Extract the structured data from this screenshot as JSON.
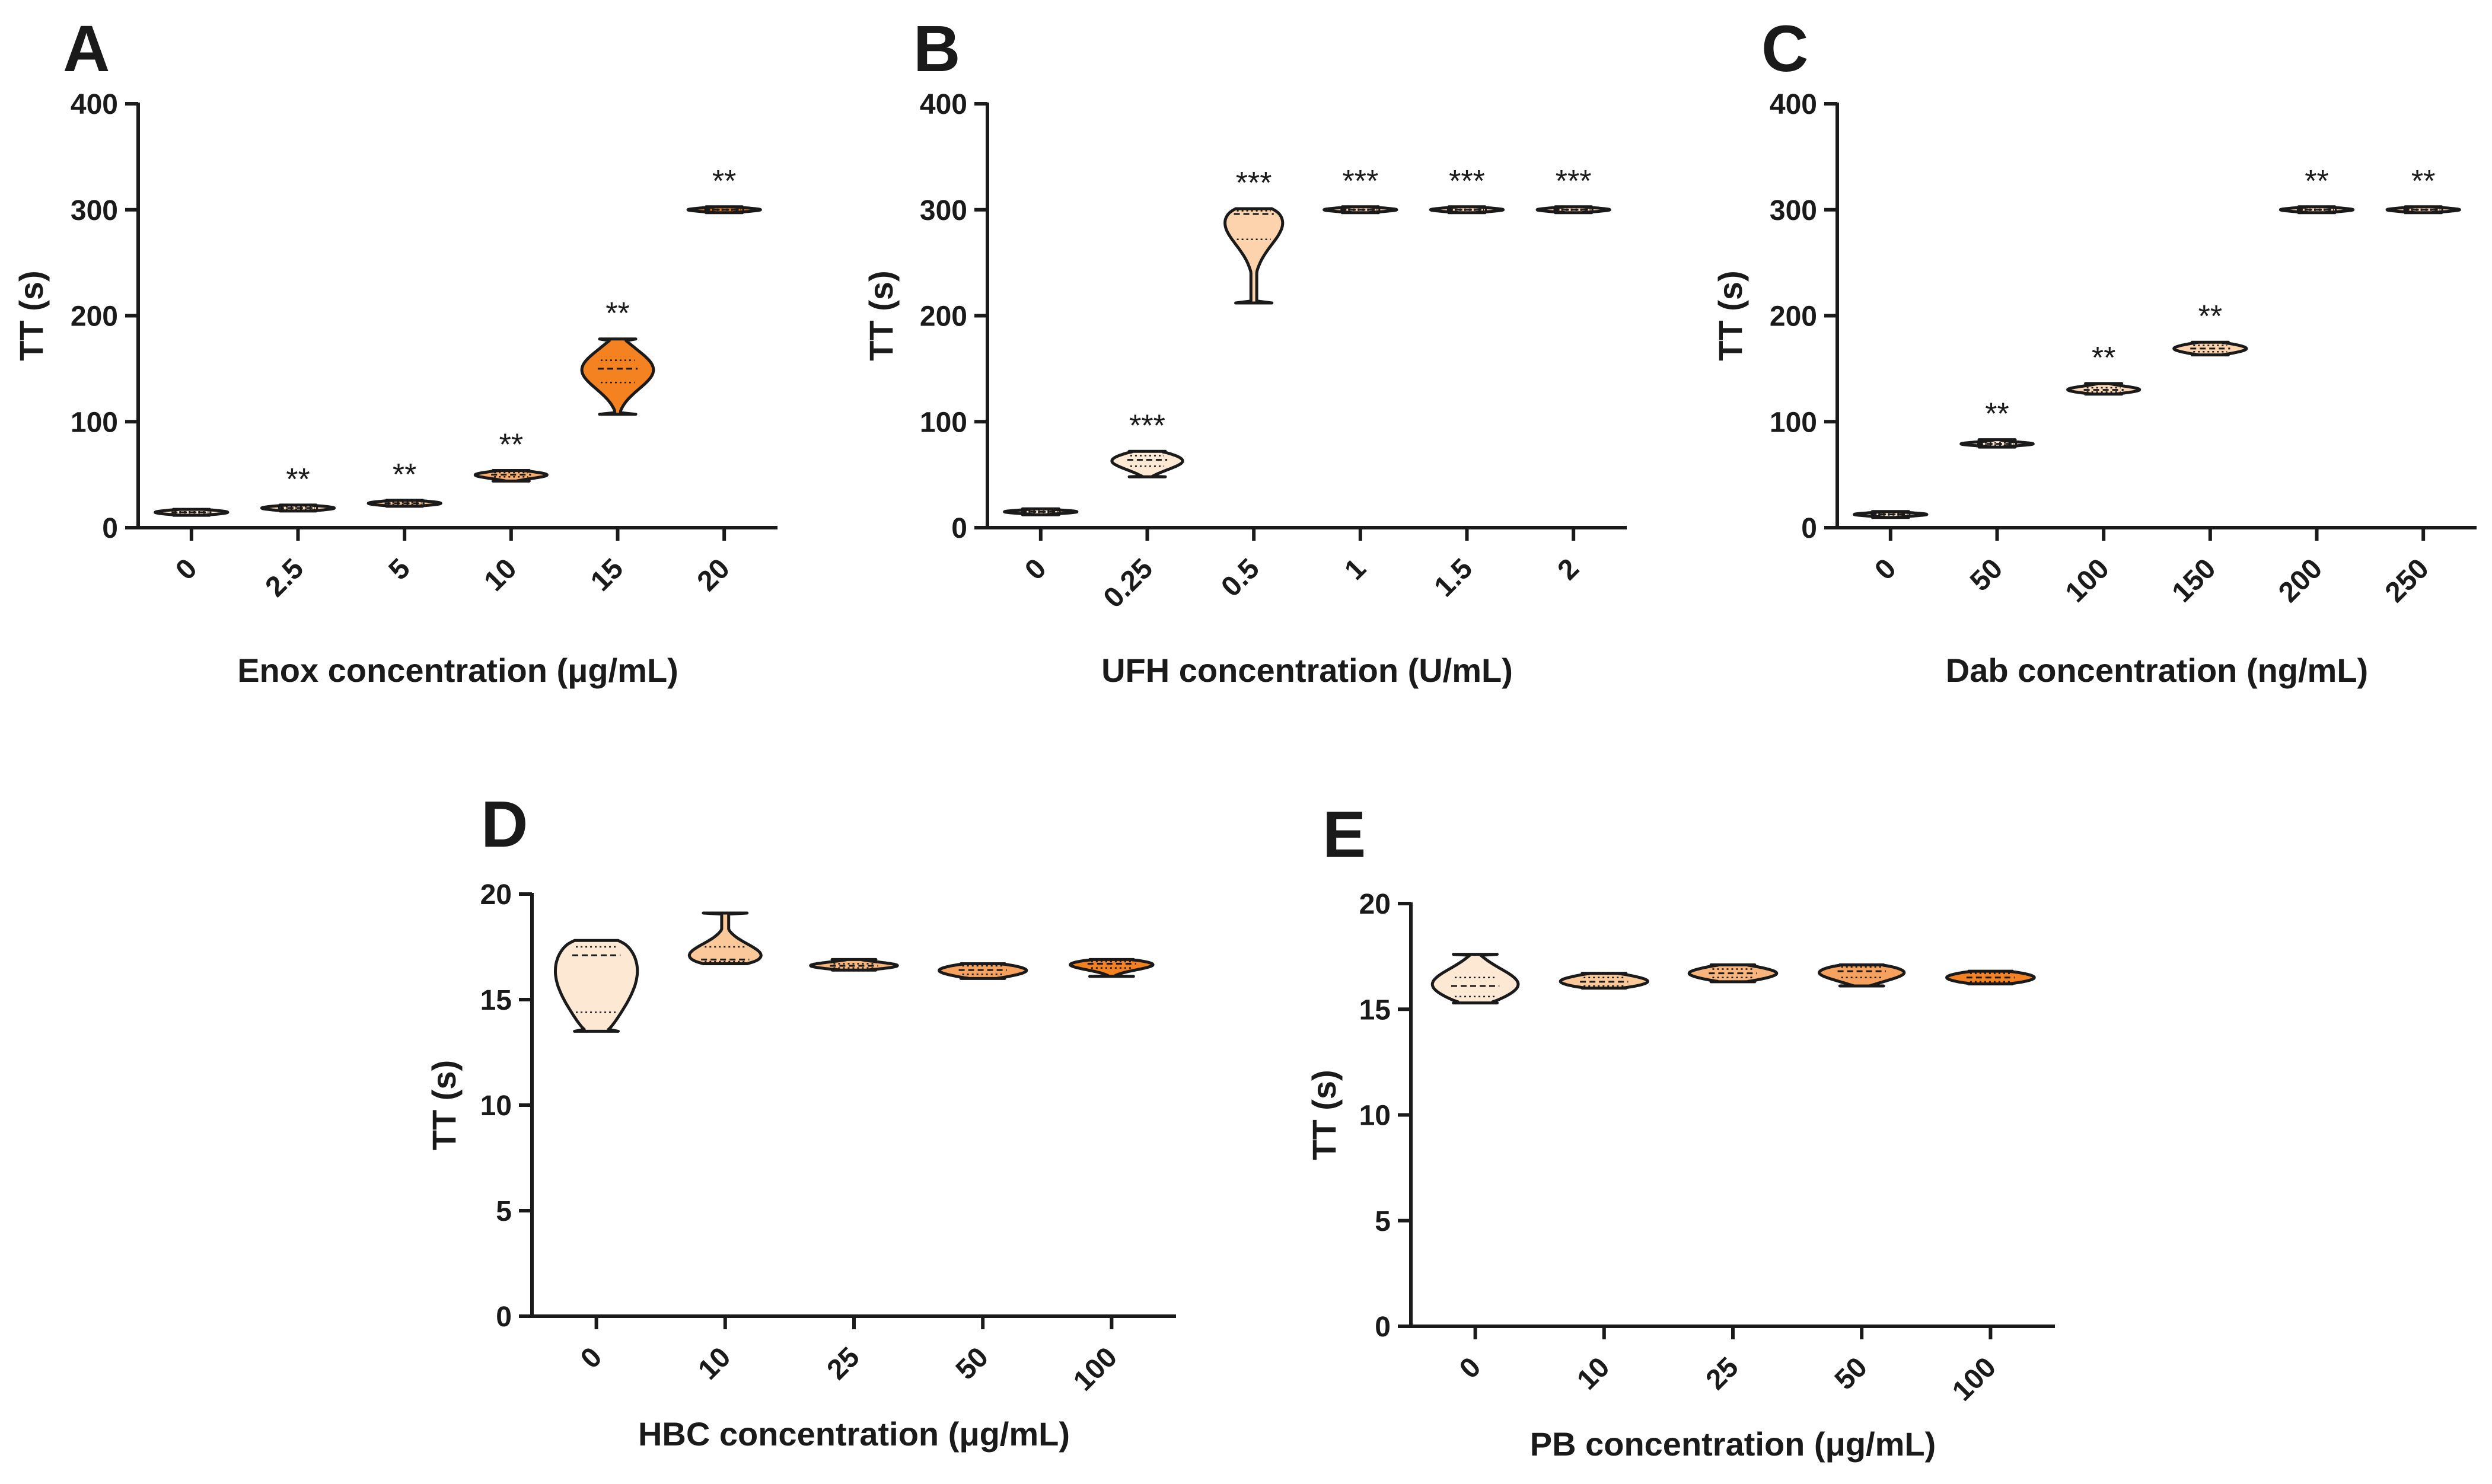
{
  "chart_data": [
    {
      "panel": "A",
      "type": "violin",
      "ylabel": "TT (s)",
      "xlabel": "Enox concentration (μg/mL)",
      "ylim": [
        0,
        400
      ],
      "yticks": [
        0,
        100,
        200,
        300,
        400
      ],
      "categories": [
        "0",
        "2.5",
        "5",
        "10",
        "15",
        "20"
      ],
      "groups": [
        {
          "category": "0",
          "min": 13.5,
          "q1": 14.0,
          "median": 14.5,
          "q3": 15.0,
          "max": 15.5,
          "color": "#fde8d4",
          "significance": ""
        },
        {
          "category": "2.5",
          "min": 16.5,
          "q1": 17.5,
          "median": 18.5,
          "q3": 19.5,
          "max": 20.5,
          "color": "#fcd9b8",
          "significance": "**"
        },
        {
          "category": "5",
          "min": 21.0,
          "q1": 22.0,
          "median": 23.0,
          "q3": 24.0,
          "max": 25.0,
          "color": "#fbc897",
          "significance": "**"
        },
        {
          "category": "10",
          "min": 44.0,
          "q1": 48.0,
          "median": 50.0,
          "q3": 52.0,
          "max": 54.0,
          "color": "#f9ae6d",
          "significance": "**"
        },
        {
          "category": "15",
          "min": 107.0,
          "q1": 137.0,
          "median": 150.0,
          "q3": 158.0,
          "max": 178.0,
          "color": "#f58220",
          "significance": "**"
        },
        {
          "category": "20",
          "min": 299.0,
          "q1": 299.6,
          "median": 300.0,
          "q3": 300.4,
          "max": 301.0,
          "color": "#f07a10",
          "significance": "**"
        }
      ]
    },
    {
      "panel": "B",
      "type": "violin",
      "ylabel": "TT (s)",
      "xlabel": "UFH concentration (U/mL)",
      "ylim": [
        0,
        400
      ],
      "yticks": [
        0,
        100,
        200,
        300,
        400
      ],
      "categories": [
        "0",
        "0.25",
        "0.5",
        "1",
        "1.5",
        "2"
      ],
      "groups": [
        {
          "category": "0",
          "min": 13.5,
          "q1": 14.5,
          "median": 15.0,
          "q3": 15.5,
          "max": 16.5,
          "color": "#fde8d4",
          "significance": ""
        },
        {
          "category": "0.25",
          "min": 48.0,
          "q1": 58.0,
          "median": 64.0,
          "q3": 68.0,
          "max": 72.0,
          "color": "#fde8d4",
          "significance": "***"
        },
        {
          "category": "0.5",
          "min": 212.0,
          "q1": 272.0,
          "median": 296.0,
          "q3": 299.0,
          "max": 301.0,
          "color": "#fcd3ad",
          "significance": "***"
        },
        {
          "category": "1",
          "min": 299.0,
          "q1": 299.6,
          "median": 300.0,
          "q3": 300.4,
          "max": 301.0,
          "color": "#fcd3ad",
          "significance": "***"
        },
        {
          "category": "1.5",
          "min": 299.0,
          "q1": 299.6,
          "median": 300.0,
          "q3": 300.4,
          "max": 301.0,
          "color": "#fcd3ad",
          "significance": "***"
        },
        {
          "category": "2",
          "min": 299.0,
          "q1": 299.6,
          "median": 300.0,
          "q3": 300.4,
          "max": 301.0,
          "color": "#fcd3ad",
          "significance": "***"
        }
      ]
    },
    {
      "panel": "C",
      "type": "violin",
      "ylabel": "TT (s)",
      "xlabel": "Dab concentration (ng/mL)",
      "ylim": [
        0,
        400
      ],
      "yticks": [
        0,
        100,
        200,
        300,
        400
      ],
      "categories": [
        "0",
        "50",
        "100",
        "150",
        "200",
        "250"
      ],
      "groups": [
        {
          "category": "0",
          "min": 11.0,
          "q1": 12.0,
          "median": 12.5,
          "q3": 13.0,
          "max": 14.0,
          "color": "#fde8d4",
          "significance": ""
        },
        {
          "category": "50",
          "min": 76.0,
          "q1": 78.0,
          "median": 79.0,
          "q3": 80.0,
          "max": 83.0,
          "color": "#fde8d4",
          "significance": "**"
        },
        {
          "category": "100",
          "min": 126.0,
          "q1": 128.0,
          "median": 130.0,
          "q3": 132.0,
          "max": 136.0,
          "color": "#fcd9b8",
          "significance": "**"
        },
        {
          "category": "150",
          "min": 163.0,
          "q1": 166.0,
          "median": 169.0,
          "q3": 172.0,
          "max": 175.0,
          "color": "#fcd3ad",
          "significance": "**"
        },
        {
          "category": "200",
          "min": 299.0,
          "q1": 299.6,
          "median": 300.0,
          "q3": 300.4,
          "max": 301.0,
          "color": "#fcd3ad",
          "significance": "**"
        },
        {
          "category": "250",
          "min": 299.0,
          "q1": 299.6,
          "median": 300.0,
          "q3": 300.4,
          "max": 301.0,
          "color": "#fcd3ad",
          "significance": "**"
        }
      ]
    },
    {
      "panel": "D",
      "type": "violin",
      "ylabel": "TT (s)",
      "xlabel": "HBC concentration (μg/mL)",
      "ylim": [
        0,
        20
      ],
      "yticks": [
        0,
        5,
        10,
        15,
        20
      ],
      "categories": [
        "0",
        "10",
        "25",
        "50",
        "100"
      ],
      "groups": [
        {
          "category": "0",
          "min": 13.5,
          "q1": 14.4,
          "median": 17.1,
          "q3": 17.5,
          "max": 17.8,
          "color": "#fde8d4",
          "significance": ""
        },
        {
          "category": "10",
          "min": 16.7,
          "q1": 16.8,
          "median": 16.9,
          "q3": 17.5,
          "max": 19.1,
          "color": "#fbc89a",
          "significance": ""
        },
        {
          "category": "25",
          "min": 16.4,
          "q1": 16.5,
          "median": 16.6,
          "q3": 16.7,
          "max": 16.9,
          "color": "#f9b57c",
          "significance": ""
        },
        {
          "category": "50",
          "min": 16.0,
          "q1": 16.2,
          "median": 16.4,
          "q3": 16.6,
          "max": 16.7,
          "color": "#f6a15d",
          "significance": ""
        },
        {
          "category": "100",
          "min": 16.1,
          "q1": 16.5,
          "median": 16.7,
          "q3": 16.8,
          "max": 16.9,
          "color": "#f58220",
          "significance": ""
        }
      ]
    },
    {
      "panel": "E",
      "type": "violin",
      "ylabel": "TT (s)",
      "xlabel": "PB concentration (μg/mL)",
      "ylim": [
        0,
        20
      ],
      "yticks": [
        0,
        5,
        10,
        15,
        20
      ],
      "categories": [
        "0",
        "10",
        "25",
        "50",
        "100"
      ],
      "groups": [
        {
          "category": "0",
          "min": 15.3,
          "q1": 15.6,
          "median": 16.1,
          "q3": 16.5,
          "max": 17.6,
          "color": "#fde8d4",
          "significance": ""
        },
        {
          "category": "10",
          "min": 16.0,
          "q1": 16.1,
          "median": 16.3,
          "q3": 16.5,
          "max": 16.7,
          "color": "#fbc89a",
          "significance": ""
        },
        {
          "category": "25",
          "min": 16.3,
          "q1": 16.5,
          "median": 16.7,
          "q3": 16.9,
          "max": 17.1,
          "color": "#f9b57c",
          "significance": ""
        },
        {
          "category": "50",
          "min": 16.1,
          "q1": 16.5,
          "median": 16.8,
          "q3": 17.0,
          "max": 17.1,
          "color": "#f6a15d",
          "significance": ""
        },
        {
          "category": "100",
          "min": 16.2,
          "q1": 16.3,
          "median": 16.5,
          "q3": 16.7,
          "max": 16.8,
          "color": "#f58220",
          "significance": ""
        }
      ]
    }
  ]
}
